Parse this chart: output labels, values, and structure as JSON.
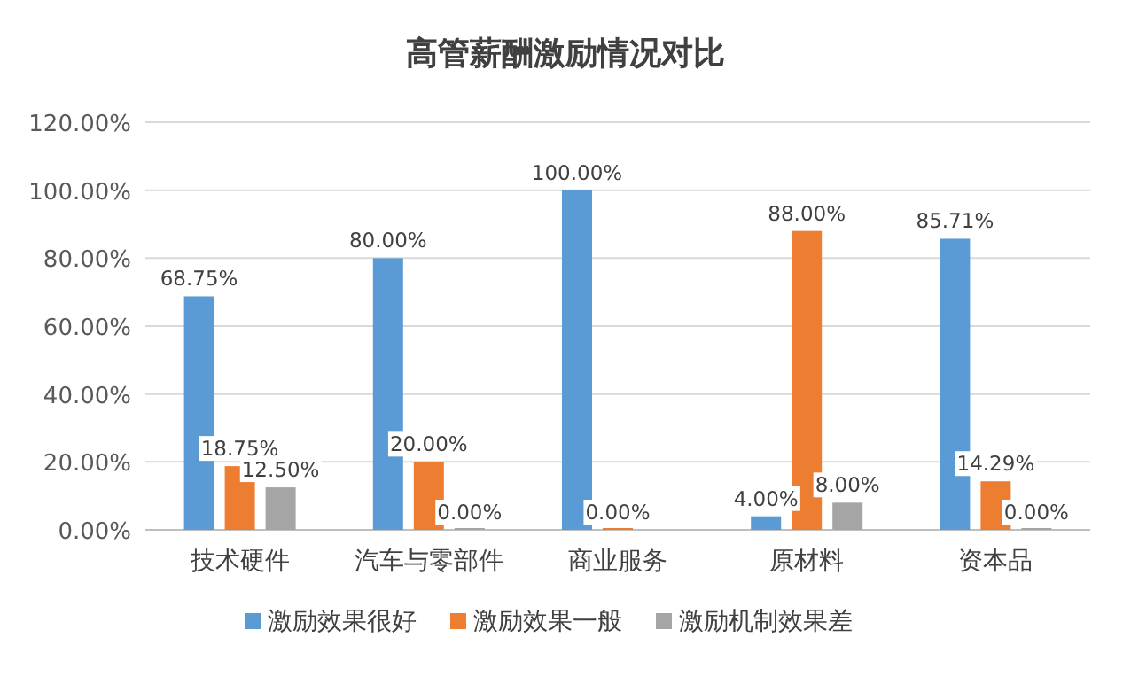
{
  "chart_data": {
    "type": "bar",
    "title": "高管薪酬激励情况对比",
    "categories": [
      "技术硬件",
      "汽车与零部件",
      "商业服务",
      "原材料",
      "资本品"
    ],
    "series": [
      {
        "name": "激励效果很好",
        "color": "#5b9bd5",
        "values": [
          68.75,
          80,
          100,
          4,
          85.71
        ],
        "value_labels": [
          "68.75%",
          "80.00%",
          "100.00%",
          "4.00%",
          "85.71%"
        ]
      },
      {
        "name": "激励效果一般",
        "color": "#ed7d31",
        "values": [
          18.75,
          20,
          0,
          88,
          14.29
        ],
        "value_labels": [
          "18.75%",
          "20.00%",
          "0.00%",
          "88.00%",
          "14.29%"
        ]
      },
      {
        "name": "激励机制效果差",
        "color": "#a5a5a5",
        "values": [
          12.5,
          0,
          null,
          8,
          0
        ],
        "value_labels": [
          "12.50%",
          "0.00%",
          null,
          "8.00%",
          "0.00%"
        ]
      }
    ],
    "ylim": [
      0,
      120
    ],
    "yticks": [
      {
        "value": 0,
        "label": "0.00%"
      },
      {
        "value": 20,
        "label": "20.00%"
      },
      {
        "value": 40,
        "label": "40.00%"
      },
      {
        "value": 60,
        "label": "60.00%"
      },
      {
        "value": 80,
        "label": "80.00%"
      },
      {
        "value": 100,
        "label": "100.00%"
      },
      {
        "value": 120,
        "label": "120.00%"
      }
    ],
    "grid": "y",
    "legend": "bottom"
  }
}
